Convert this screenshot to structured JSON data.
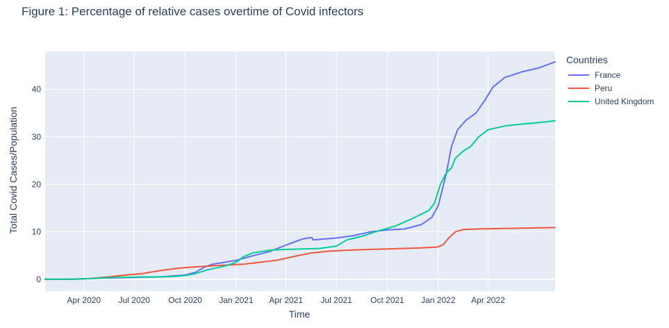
{
  "figure": {
    "title": "Figure 1: Percentage of relative cases overtime of Covid infectors"
  },
  "chart_data": {
    "type": "line",
    "title": "Figure 1: Percentage of relative cases overtime of Covid infectors",
    "xlabel": "Time",
    "ylabel": "Total Covid Cases/Population",
    "legend_title": "Countries",
    "legend_position": "right",
    "grid": true,
    "plot_background": "#e5ecf6",
    "xlim": [
      "2020-01-22",
      "2022-07-31"
    ],
    "ylim": [
      -2.5,
      48
    ],
    "x_ticks": [
      {
        "date": "2020-04-01",
        "label": "Apr 2020"
      },
      {
        "date": "2020-07-01",
        "label": "Jul 2020"
      },
      {
        "date": "2020-10-01",
        "label": "Oct 2020"
      },
      {
        "date": "2021-01-01",
        "label": "Jan 2021"
      },
      {
        "date": "2021-04-01",
        "label": "Apr 2021"
      },
      {
        "date": "2021-07-01",
        "label": "Jul 2021"
      },
      {
        "date": "2021-10-01",
        "label": "Oct 2021"
      },
      {
        "date": "2022-01-01",
        "label": "Jan 2022"
      },
      {
        "date": "2022-04-01",
        "label": "Apr 2022"
      }
    ],
    "y_ticks": [
      0,
      10,
      20,
      30,
      40
    ],
    "series": [
      {
        "name": "France",
        "color": "#636efa",
        "points": [
          [
            "2020-01-22",
            0
          ],
          [
            "2020-03-01",
            0.01
          ],
          [
            "2020-04-01",
            0.1
          ],
          [
            "2020-05-01",
            0.25
          ],
          [
            "2020-07-01",
            0.4
          ],
          [
            "2020-08-15",
            0.5
          ],
          [
            "2020-10-01",
            0.9
          ],
          [
            "2020-10-20",
            1.5
          ],
          [
            "2020-11-05",
            2.6
          ],
          [
            "2020-11-20",
            3.2
          ],
          [
            "2021-01-01",
            4.0
          ],
          [
            "2021-02-01",
            5.0
          ],
          [
            "2021-03-01",
            5.8
          ],
          [
            "2021-04-01",
            7.2
          ],
          [
            "2021-05-01",
            8.5
          ],
          [
            "2021-05-18",
            8.8
          ],
          [
            "2021-05-20",
            8.3
          ],
          [
            "2021-07-01",
            8.7
          ],
          [
            "2021-08-01",
            9.2
          ],
          [
            "2021-09-01",
            10.0
          ],
          [
            "2021-10-01",
            10.4
          ],
          [
            "2021-11-01",
            10.6
          ],
          [
            "2021-12-01",
            11.5
          ],
          [
            "2021-12-20",
            13.0
          ],
          [
            "2022-01-01",
            15.5
          ],
          [
            "2022-01-15",
            22.0
          ],
          [
            "2022-01-25",
            28.0
          ],
          [
            "2022-02-05",
            31.5
          ],
          [
            "2022-02-20",
            33.5
          ],
          [
            "2022-03-10",
            35.0
          ],
          [
            "2022-03-25",
            37.5
          ],
          [
            "2022-04-10",
            40.5
          ],
          [
            "2022-05-01",
            42.5
          ],
          [
            "2022-06-01",
            43.7
          ],
          [
            "2022-07-01",
            44.5
          ],
          [
            "2022-07-31",
            45.8
          ]
        ]
      },
      {
        "name": "Peru",
        "color": "#ef553b",
        "points": [
          [
            "2020-01-22",
            0
          ],
          [
            "2020-03-20",
            0.02
          ],
          [
            "2020-04-15",
            0.2
          ],
          [
            "2020-05-15",
            0.5
          ],
          [
            "2020-06-15",
            0.9
          ],
          [
            "2020-07-15",
            1.2
          ],
          [
            "2020-08-15",
            1.8
          ],
          [
            "2020-09-15",
            2.3
          ],
          [
            "2020-10-15",
            2.6
          ],
          [
            "2020-11-15",
            2.8
          ],
          [
            "2020-12-15",
            3.0
          ],
          [
            "2021-01-15",
            3.2
          ],
          [
            "2021-02-15",
            3.6
          ],
          [
            "2021-03-15",
            4.0
          ],
          [
            "2021-04-15",
            4.8
          ],
          [
            "2021-05-15",
            5.5
          ],
          [
            "2021-06-15",
            5.9
          ],
          [
            "2021-07-15",
            6.1
          ],
          [
            "2021-09-01",
            6.3
          ],
          [
            "2021-10-01",
            6.4
          ],
          [
            "2021-12-01",
            6.6
          ],
          [
            "2021-12-31",
            6.8
          ],
          [
            "2022-01-10",
            7.3
          ],
          [
            "2022-01-20",
            8.7
          ],
          [
            "2022-02-01",
            10.0
          ],
          [
            "2022-02-15",
            10.5
          ],
          [
            "2022-03-15",
            10.6
          ],
          [
            "2022-05-01",
            10.7
          ],
          [
            "2022-07-31",
            10.9
          ]
        ]
      },
      {
        "name": "United Kingdom",
        "color": "#00cc96",
        "points": [
          [
            "2020-01-22",
            0
          ],
          [
            "2020-03-01",
            0.01
          ],
          [
            "2020-04-15",
            0.15
          ],
          [
            "2020-05-15",
            0.35
          ],
          [
            "2020-07-01",
            0.45
          ],
          [
            "2020-09-01",
            0.55
          ],
          [
            "2020-10-01",
            0.8
          ],
          [
            "2020-10-20",
            1.2
          ],
          [
            "2020-11-10",
            2.0
          ],
          [
            "2020-12-01",
            2.5
          ],
          [
            "2020-12-15",
            2.9
          ],
          [
            "2021-01-01",
            3.6
          ],
          [
            "2021-01-15",
            4.8
          ],
          [
            "2021-02-01",
            5.6
          ],
          [
            "2021-03-01",
            6.1
          ],
          [
            "2021-04-01",
            6.3
          ],
          [
            "2021-05-01",
            6.4
          ],
          [
            "2021-06-01",
            6.5
          ],
          [
            "2021-07-01",
            7.0
          ],
          [
            "2021-07-20",
            8.3
          ],
          [
            "2021-08-15",
            9.0
          ],
          [
            "2021-09-15",
            10.2
          ],
          [
            "2021-10-15",
            11.2
          ],
          [
            "2021-11-15",
            12.8
          ],
          [
            "2021-12-15",
            14.5
          ],
          [
            "2021-12-25",
            16.0
          ],
          [
            "2022-01-05",
            20.0
          ],
          [
            "2022-01-15",
            22.3
          ],
          [
            "2022-01-25",
            23.5
          ],
          [
            "2022-02-01",
            25.5
          ],
          [
            "2022-02-15",
            27.0
          ],
          [
            "2022-03-01",
            28.0
          ],
          [
            "2022-03-15",
            30.0
          ],
          [
            "2022-04-01",
            31.5
          ],
          [
            "2022-05-01",
            32.3
          ],
          [
            "2022-06-01",
            32.7
          ],
          [
            "2022-07-01",
            33.0
          ],
          [
            "2022-07-31",
            33.4
          ]
        ]
      }
    ]
  }
}
